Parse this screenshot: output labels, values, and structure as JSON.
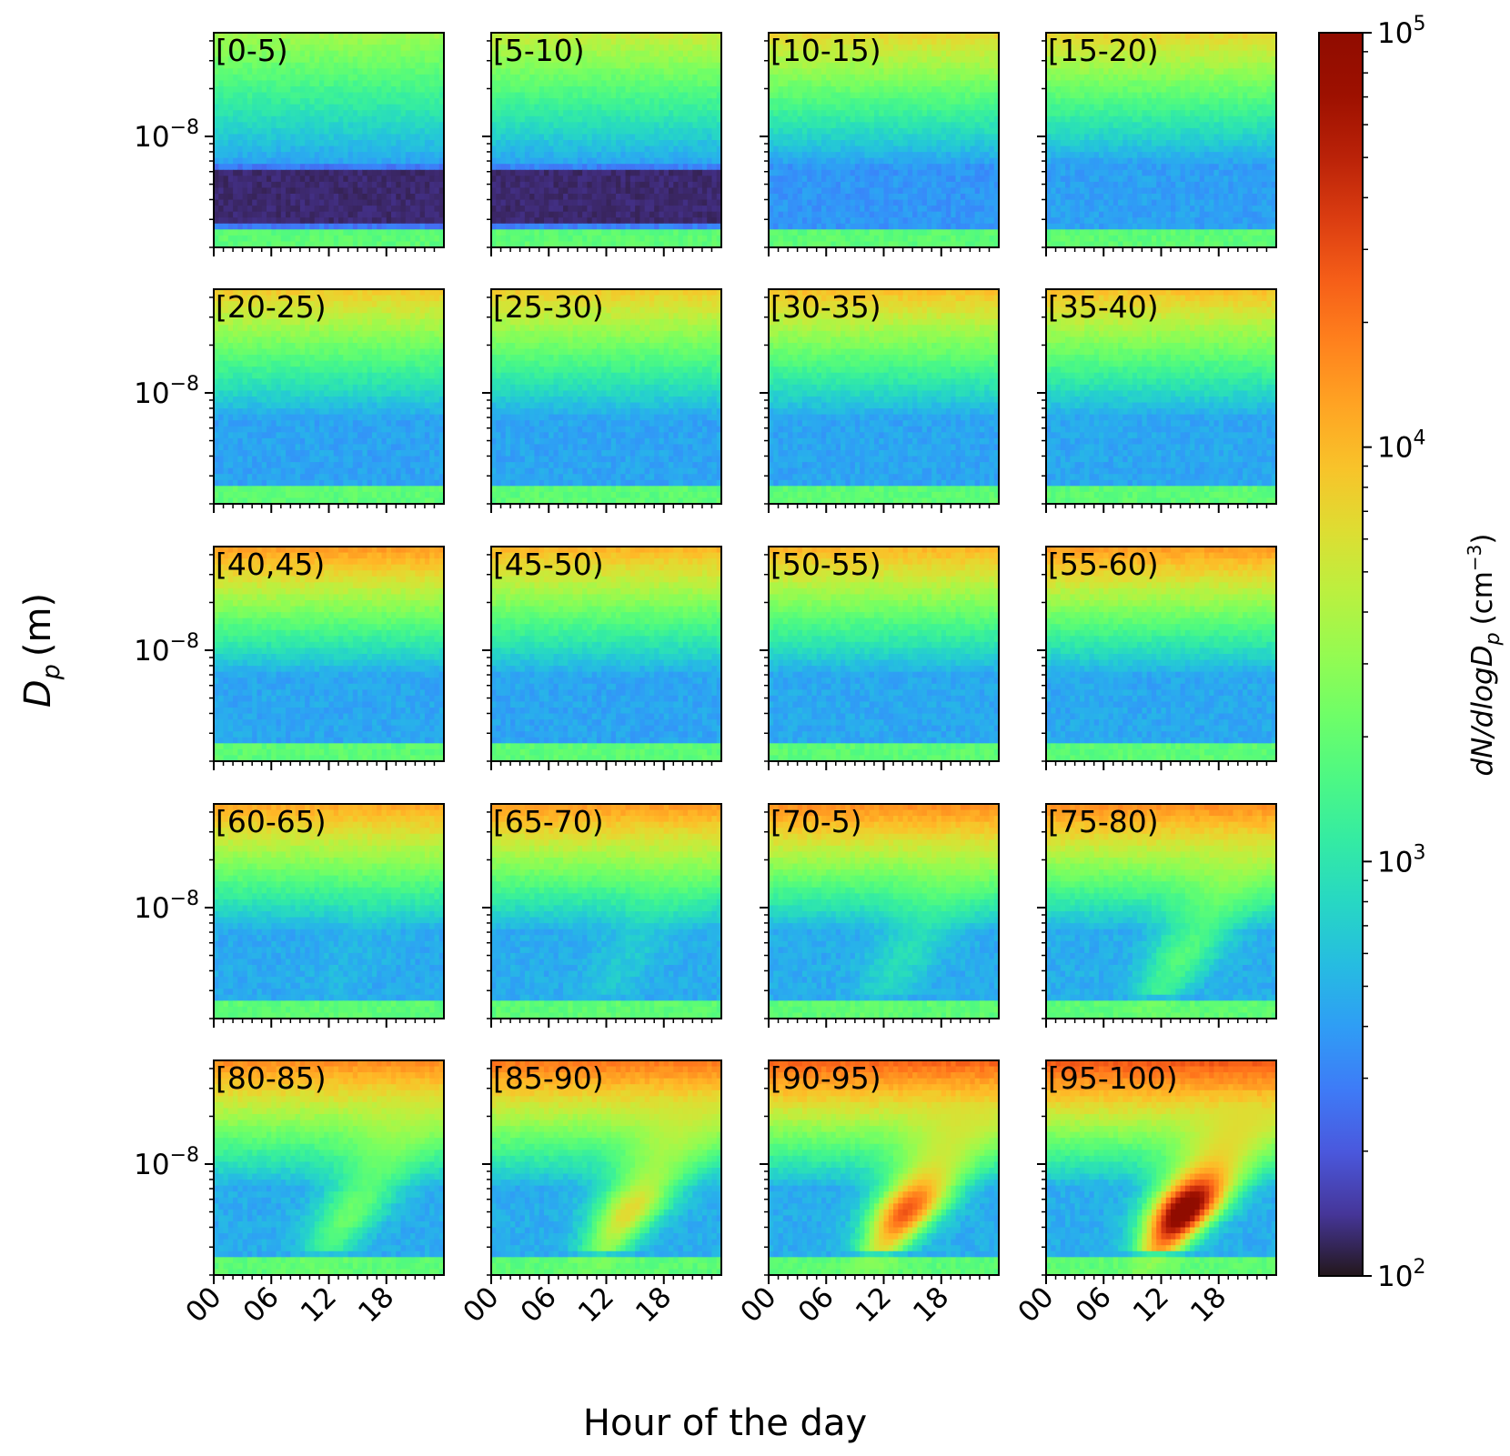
{
  "chart_data": {
    "type": "heatmap",
    "layout": {
      "rows": 5,
      "cols": 4
    },
    "xlabel": "Hour of the day",
    "ylabel": "D",
    "ylabel_sub": "p",
    "ylabel_unit": "(m)",
    "x_range": [
      0,
      24
    ],
    "x_ticks": [
      0,
      6,
      12,
      18
    ],
    "x_tick_labels": [
      "00",
      "06",
      "12",
      "18"
    ],
    "y_scale": "log",
    "y_range": [
      2e-09,
      4.5e-08
    ],
    "y_ticks": [
      1e-08
    ],
    "y_tick_base": "10",
    "y_tick_exp": "−8",
    "colorbar": {
      "label_main": "dN/dlogD",
      "label_sub": "p",
      "label_unit": "(cm",
      "label_unit_exp": "−3",
      "label_unit_close": ")",
      "scale": "log",
      "range": [
        100,
        100000
      ],
      "colormap": "turbo",
      "ticks": [
        {
          "value": 100,
          "base": "10",
          "exp": "2"
        },
        {
          "value": 1000,
          "base": "10",
          "exp": "3"
        },
        {
          "value": 10000,
          "base": "10",
          "exp": "4"
        },
        {
          "value": 100000,
          "base": "10",
          "exp": "5"
        }
      ]
    },
    "panels": [
      {
        "label": "[0-5)",
        "banana": 0,
        "dark": 1.0,
        "top": 0.5
      },
      {
        "label": "[5-10)",
        "banana": 0,
        "dark": 0.85,
        "top": 0.55
      },
      {
        "label": "[10-15)",
        "banana": 0,
        "dark": 0.55,
        "top": 0.6
      },
      {
        "label": "[15-20)",
        "banana": 0,
        "dark": 0.4,
        "top": 0.6
      },
      {
        "label": "[20-25)",
        "banana": 0,
        "dark": 0.35,
        "top": 0.62
      },
      {
        "label": "[25-30)",
        "banana": 0,
        "dark": 0.33,
        "top": 0.62
      },
      {
        "label": "[30-35)",
        "banana": 0,
        "dark": 0.33,
        "top": 0.64
      },
      {
        "label": "[35-40)",
        "banana": 0,
        "dark": 0.3,
        "top": 0.64
      },
      {
        "label": "[40,45)",
        "banana": 0,
        "dark": 0.3,
        "top": 0.7
      },
      {
        "label": "[45-50)",
        "banana": 0,
        "dark": 0.33,
        "top": 0.66
      },
      {
        "label": "[50-55)",
        "banana": 0,
        "dark": 0.28,
        "top": 0.66
      },
      {
        "label": "[55-60)",
        "banana": 0,
        "dark": 0.28,
        "top": 0.7
      },
      {
        "label": "[60-65)",
        "banana": 0.05,
        "dark": 0.25,
        "top": 0.68
      },
      {
        "label": "[65-70)",
        "banana": 0.12,
        "dark": 0.22,
        "top": 0.7
      },
      {
        "label": "[70-5)",
        "banana": 0.2,
        "dark": 0.22,
        "top": 0.72
      },
      {
        "label": "[75-80)",
        "banana": 0.35,
        "dark": 0.2,
        "top": 0.72
      },
      {
        "label": "[80-85)",
        "banana": 0.4,
        "dark": 0.22,
        "top": 0.72
      },
      {
        "label": "[85-90)",
        "banana": 0.6,
        "dark": 0.2,
        "top": 0.75
      },
      {
        "label": "[90-95)",
        "banana": 0.8,
        "dark": 0.2,
        "top": 0.78
      },
      {
        "label": "[95-100)",
        "banana": 1.0,
        "dark": 0.2,
        "top": 0.8
      }
    ]
  }
}
